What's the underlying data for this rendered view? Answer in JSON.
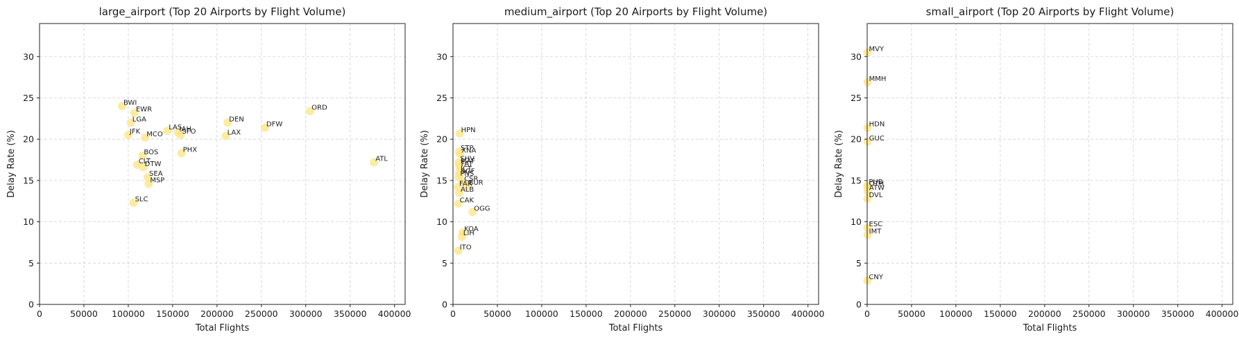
{
  "chart_data": [
    {
      "type": "scatter",
      "title": "large_airport (Top 20 Airports by Flight Volume)",
      "xlabel": "Total Flights",
      "ylabel": "Delay Rate (%)",
      "xlim": [
        0,
        412000
      ],
      "ylim": [
        0,
        34
      ],
      "xticks": [
        0,
        50000,
        100000,
        150000,
        200000,
        250000,
        300000,
        350000,
        400000
      ],
      "yticks": [
        0,
        5,
        10,
        15,
        20,
        25,
        30
      ],
      "grid": true,
      "color": "#fde68a",
      "points": [
        {
          "label": "ATL",
          "x": 377000,
          "y": 17.2
        },
        {
          "label": "ORD",
          "x": 305000,
          "y": 23.4
        },
        {
          "label": "DFW",
          "x": 254000,
          "y": 21.4
        },
        {
          "label": "DEN",
          "x": 212000,
          "y": 22.0
        },
        {
          "label": "LAX",
          "x": 210000,
          "y": 20.4
        },
        {
          "label": "PHX",
          "x": 160000,
          "y": 18.3
        },
        {
          "label": "SFO",
          "x": 159000,
          "y": 20.5
        },
        {
          "label": "IAH",
          "x": 156000,
          "y": 20.8
        },
        {
          "label": "LAS",
          "x": 144000,
          "y": 21.0
        },
        {
          "label": "MCO",
          "x": 119000,
          "y": 20.2
        },
        {
          "label": "SEA",
          "x": 122000,
          "y": 15.4
        },
        {
          "label": "MSP",
          "x": 123000,
          "y": 14.6
        },
        {
          "label": "DTW",
          "x": 117000,
          "y": 16.6
        },
        {
          "label": "BOS",
          "x": 116000,
          "y": 18.0
        },
        {
          "label": "CLT",
          "x": 110000,
          "y": 16.9
        },
        {
          "label": "EWR",
          "x": 107000,
          "y": 23.2
        },
        {
          "label": "SLC",
          "x": 106000,
          "y": 12.3
        },
        {
          "label": "LGA",
          "x": 103000,
          "y": 22.0
        },
        {
          "label": "JFK",
          "x": 100000,
          "y": 20.5
        },
        {
          "label": "BWI",
          "x": 93000,
          "y": 24.0
        }
      ]
    },
    {
      "type": "scatter",
      "title": "medium_airport (Top 20 Airports by Flight Volume)",
      "xlabel": "Total Flights",
      "ylabel": "Delay Rate (%)",
      "xlim": [
        0,
        412000
      ],
      "ylim": [
        0,
        34
      ],
      "xticks": [
        0,
        50000,
        100000,
        150000,
        200000,
        250000,
        300000,
        350000,
        400000
      ],
      "yticks": [
        0,
        5,
        10,
        15,
        20,
        25,
        30
      ],
      "grid": true,
      "color": "#fde68a",
      "points": [
        {
          "label": "HPN",
          "x": 7500,
          "y": 20.7
        },
        {
          "label": "STP",
          "x": 7000,
          "y": 18.5
        },
        {
          "label": "XNA",
          "x": 8000,
          "y": 18.2
        },
        {
          "label": "SHV",
          "x": 6500,
          "y": 17.2
        },
        {
          "label": "MAF",
          "x": 7000,
          "y": 16.9
        },
        {
          "label": "FAT",
          "x": 7500,
          "y": 16.6
        },
        {
          "label": "ICT",
          "x": 7000,
          "y": 16.0
        },
        {
          "label": "SGF",
          "x": 7500,
          "y": 15.7
        },
        {
          "label": "PNS",
          "x": 6500,
          "y": 15.4
        },
        {
          "label": "CSR",
          "x": 11000,
          "y": 14.8
        },
        {
          "label": "BUR",
          "x": 16000,
          "y": 14.3
        },
        {
          "label": "FAR",
          "x": 5500,
          "y": 14.2
        },
        {
          "label": "ALB",
          "x": 7000,
          "y": 13.5
        },
        {
          "label": "CAK",
          "x": 6000,
          "y": 12.2
        },
        {
          "label": "OGG",
          "x": 22000,
          "y": 11.2
        },
        {
          "label": "KOA",
          "x": 11000,
          "y": 8.7
        },
        {
          "label": "LIH",
          "x": 10000,
          "y": 8.2
        },
        {
          "label": "ITO",
          "x": 6000,
          "y": 6.5
        }
      ]
    },
    {
      "type": "scatter",
      "title": "small_airport (Top 20 Airports by Flight Volume)",
      "xlabel": "Total Flights",
      "ylabel": "Delay Rate (%)",
      "xlim": [
        0,
        412000
      ],
      "ylim": [
        0,
        34
      ],
      "xticks": [
        0,
        50000,
        100000,
        150000,
        200000,
        250000,
        300000,
        350000,
        400000
      ],
      "yticks": [
        0,
        5,
        10,
        15,
        20,
        25,
        30
      ],
      "grid": true,
      "color": "#fde68a",
      "points": [
        {
          "label": "MVY",
          "x": 400,
          "y": 30.5
        },
        {
          "label": "MMH",
          "x": 500,
          "y": 26.9
        },
        {
          "label": "HDN",
          "x": 500,
          "y": 21.4
        },
        {
          "label": "GUC",
          "x": 600,
          "y": 19.7
        },
        {
          "label": "PUB",
          "x": 300,
          "y": 14.4
        },
        {
          "label": "OTH",
          "x": 500,
          "y": 14.2
        },
        {
          "label": "ATW",
          "x": 700,
          "y": 13.7
        },
        {
          "label": "DVL",
          "x": 400,
          "y": 12.8
        },
        {
          "label": "ESC",
          "x": 400,
          "y": 9.3
        },
        {
          "label": "IMT",
          "x": 500,
          "y": 8.4
        },
        {
          "label": "CNY",
          "x": 300,
          "y": 2.9
        }
      ]
    }
  ]
}
